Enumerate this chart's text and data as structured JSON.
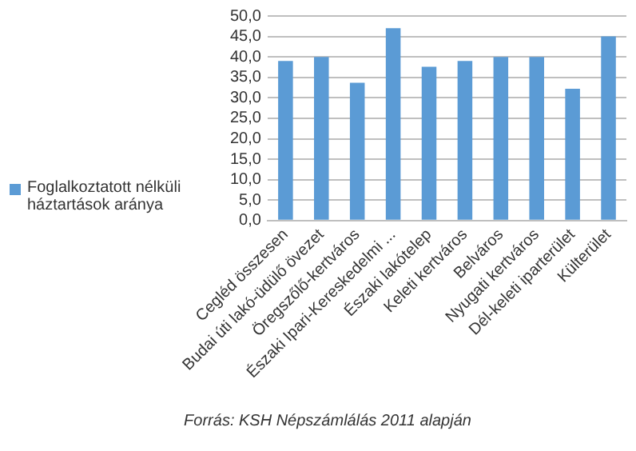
{
  "chart_data": {
    "type": "bar",
    "categories": [
      "Cegléd összesen",
      "Budai úti lakó-üdülő övezet",
      "Öregszőlő-kertváros",
      "Északi Ipari-Kereskedelmi ...",
      "Északi lakótelep",
      "Keleti kertváros",
      "Belváros",
      "Nyugati kertváros",
      "Dél-keleti iparterület",
      "Külterület"
    ],
    "series": [
      {
        "name": "Foglalkoztatott nélküli háztartások aránya",
        "color": "#5b9bd5",
        "values": [
          39.0,
          40.0,
          33.7,
          47.0,
          37.6,
          39.0,
          40.0,
          40.0,
          32.2,
          45.0
        ]
      }
    ],
    "ylim": [
      0,
      50
    ],
    "yticks": [
      {
        "value": 0,
        "label": "0,0"
      },
      {
        "value": 5,
        "label": "5,0"
      },
      {
        "value": 10,
        "label": "10,0"
      },
      {
        "value": 15,
        "label": "15,0"
      },
      {
        "value": 20,
        "label": "20,0"
      },
      {
        "value": 25,
        "label": "25,0"
      },
      {
        "value": 30,
        "label": "30,0"
      },
      {
        "value": 35,
        "label": "35,0"
      },
      {
        "value": 40,
        "label": "40,0"
      },
      {
        "value": 45,
        "label": "45,0"
      },
      {
        "value": 50,
        "label": "50,0"
      }
    ],
    "grid": "y",
    "legend": "left",
    "annotations": [
      "Forrás: KSH Népszámlálás 2011 alapján"
    ]
  }
}
